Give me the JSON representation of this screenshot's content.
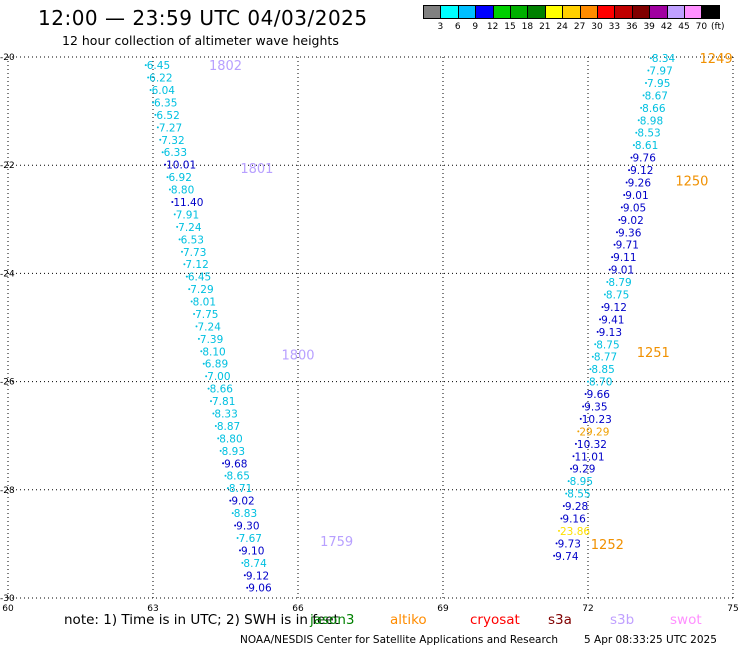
{
  "title": "12:00 — 23:59 UTC 04/03/2025",
  "subtitle": "12 hour collection of altimeter wave heights",
  "legend": {
    "colors": [
      "#808080",
      "#00ffff",
      "#00bfff",
      "#0000ff",
      "#00d000",
      "#00b000",
      "#008000",
      "#ffff00",
      "#ffd000",
      "#ff8c00",
      "#ff0000",
      "#c00000",
      "#800000",
      "#a000a0",
      "#c0a0ff",
      "#ff90ff",
      "#000000"
    ],
    "ticks": [
      "3",
      "6",
      "9",
      "12",
      "15",
      "18",
      "21",
      "24",
      "27",
      "30",
      "33",
      "36",
      "39",
      "42",
      "45",
      "70"
    ],
    "unit": "(ft)"
  },
  "note": {
    "text": "note: 1) Time is in UTC; 2) SWH is in feet",
    "satellites": [
      {
        "name": "jason3",
        "color": "#008000"
      },
      {
        "name": "altiko",
        "color": "#ff8c00"
      },
      {
        "name": "cryosat",
        "color": "#ff0000"
      },
      {
        "name": "s3a",
        "color": "#800000"
      },
      {
        "name": "s3b",
        "color": "#c0a0ff"
      },
      {
        "name": "swot",
        "color": "#ff90ff"
      }
    ]
  },
  "footer": {
    "left": "NOAA/NESDIS Center for Satellite Applications and Research",
    "right": "5 Apr 08:33:25 UTC 2025"
  },
  "chart_data": {
    "type": "scatter",
    "xlim": [
      60,
      75
    ],
    "ylim": [
      -30,
      -20
    ],
    "x_ticks": [
      "60",
      "63",
      "66",
      "69",
      "72",
      "75"
    ],
    "y_ticks": [
      "-20",
      "-22",
      "-24",
      "-26",
      "-28",
      "-30"
    ],
    "grid": true,
    "colors": {
      "cyan": "#00c0e0",
      "blue": "#0000c8",
      "orange": "#f0a000",
      "yellow": "#ffe000",
      "lav": "#b8a0ff",
      "time_orange": "#f09000"
    },
    "tracks": [
      {
        "points": [
          {
            "x": 62.85,
            "y": -20.15,
            "v": "6.45",
            "c": "cyan"
          },
          {
            "x": 62.9,
            "y": -20.38,
            "v": "6.22",
            "c": "cyan"
          },
          {
            "x": 62.95,
            "y": -20.61,
            "v": "6.04",
            "c": "cyan"
          },
          {
            "x": 63.0,
            "y": -20.84,
            "v": "6.35",
            "c": "cyan"
          },
          {
            "x": 63.05,
            "y": -21.07,
            "v": "6.52",
            "c": "cyan"
          },
          {
            "x": 63.1,
            "y": -21.3,
            "v": "7.27",
            "c": "cyan"
          },
          {
            "x": 63.15,
            "y": -21.53,
            "v": "7.32",
            "c": "cyan"
          },
          {
            "x": 63.2,
            "y": -21.76,
            "v": "6.33",
            "c": "cyan"
          },
          {
            "x": 63.25,
            "y": -21.99,
            "v": "10.01",
            "c": "blue"
          },
          {
            "x": 63.3,
            "y": -22.22,
            "v": "6.92",
            "c": "cyan"
          },
          {
            "x": 63.35,
            "y": -22.45,
            "v": "8.80",
            "c": "cyan"
          },
          {
            "x": 63.4,
            "y": -22.68,
            "v": "11.40",
            "c": "blue"
          },
          {
            "x": 63.45,
            "y": -22.91,
            "v": "7.91",
            "c": "cyan"
          },
          {
            "x": 63.5,
            "y": -23.14,
            "v": "7.24",
            "c": "cyan"
          },
          {
            "x": 63.55,
            "y": -23.37,
            "v": "6.53",
            "c": "cyan"
          },
          {
            "x": 63.6,
            "y": -23.6,
            "v": "7.73",
            "c": "cyan"
          },
          {
            "x": 63.65,
            "y": -23.83,
            "v": "7.12",
            "c": "cyan"
          },
          {
            "x": 63.7,
            "y": -24.06,
            "v": "6.45",
            "c": "cyan"
          },
          {
            "x": 63.75,
            "y": -24.29,
            "v": "7.29",
            "c": "cyan"
          },
          {
            "x": 63.8,
            "y": -24.52,
            "v": "8.01",
            "c": "cyan"
          },
          {
            "x": 63.85,
            "y": -24.75,
            "v": "7.75",
            "c": "cyan"
          },
          {
            "x": 63.9,
            "y": -24.98,
            "v": "7.24",
            "c": "cyan"
          },
          {
            "x": 63.95,
            "y": -25.21,
            "v": "7.39",
            "c": "cyan"
          },
          {
            "x": 64.0,
            "y": -25.44,
            "v": "8.10",
            "c": "cyan"
          },
          {
            "x": 64.05,
            "y": -25.67,
            "v": "6.89",
            "c": "cyan"
          },
          {
            "x": 64.1,
            "y": -25.9,
            "v": "7.00",
            "c": "cyan"
          },
          {
            "x": 64.15,
            "y": -26.13,
            "v": "8.66",
            "c": "cyan"
          },
          {
            "x": 64.2,
            "y": -26.36,
            "v": "7.81",
            "c": "cyan"
          },
          {
            "x": 64.25,
            "y": -26.59,
            "v": "8.33",
            "c": "cyan"
          },
          {
            "x": 64.3,
            "y": -26.82,
            "v": "8.87",
            "c": "cyan"
          },
          {
            "x": 64.35,
            "y": -27.05,
            "v": "8.80",
            "c": "cyan"
          },
          {
            "x": 64.4,
            "y": -27.28,
            "v": "8.93",
            "c": "cyan"
          },
          {
            "x": 64.45,
            "y": -27.51,
            "v": "9.68",
            "c": "blue"
          },
          {
            "x": 64.5,
            "y": -27.74,
            "v": "8.65",
            "c": "cyan"
          },
          {
            "x": 64.55,
            "y": -27.97,
            "v": "8.71",
            "c": "cyan"
          },
          {
            "x": 64.6,
            "y": -28.2,
            "v": "9.02",
            "c": "blue"
          },
          {
            "x": 64.65,
            "y": -28.43,
            "v": "8.83",
            "c": "cyan"
          },
          {
            "x": 64.7,
            "y": -28.66,
            "v": "9.30",
            "c": "blue"
          },
          {
            "x": 64.75,
            "y": -28.89,
            "v": "7.67",
            "c": "cyan"
          },
          {
            "x": 64.8,
            "y": -29.12,
            "v": "9.10",
            "c": "blue"
          },
          {
            "x": 64.85,
            "y": -29.35,
            "v": "8.74",
            "c": "cyan"
          },
          {
            "x": 64.9,
            "y": -29.58,
            "v": "9.12",
            "c": "blue"
          },
          {
            "x": 64.95,
            "y": -29.81,
            "v": "9.06",
            "c": "blue"
          }
        ],
        "time_labels": [
          {
            "x": 64.5,
            "y": -20.15,
            "t": "1802"
          },
          {
            "x": 65.15,
            "y": -22.05,
            "t": "1801"
          },
          {
            "x": 66.0,
            "y": -25.5,
            "t": "1800"
          },
          {
            "x": 66.8,
            "y": -28.95,
            "t": "1759"
          }
        ],
        "label_color": "lav"
      },
      {
        "points": [
          {
            "x": 73.3,
            "y": -20.02,
            "v": "8.34",
            "c": "cyan"
          },
          {
            "x": 73.25,
            "y": -20.25,
            "v": "7.97",
            "c": "cyan"
          },
          {
            "x": 73.2,
            "y": -20.48,
            "v": "7.95",
            "c": "cyan"
          },
          {
            "x": 73.15,
            "y": -20.71,
            "v": "8.67",
            "c": "cyan"
          },
          {
            "x": 73.1,
            "y": -20.94,
            "v": "8.66",
            "c": "cyan"
          },
          {
            "x": 73.05,
            "y": -21.17,
            "v": "8.98",
            "c": "cyan"
          },
          {
            "x": 73.0,
            "y": -21.4,
            "v": "8.53",
            "c": "cyan"
          },
          {
            "x": 72.95,
            "y": -21.63,
            "v": "8.61",
            "c": "cyan"
          },
          {
            "x": 72.9,
            "y": -21.86,
            "v": "9.76",
            "c": "blue"
          },
          {
            "x": 72.85,
            "y": -22.09,
            "v": "9.12",
            "c": "blue"
          },
          {
            "x": 72.8,
            "y": -22.32,
            "v": "9.26",
            "c": "blue"
          },
          {
            "x": 72.75,
            "y": -22.55,
            "v": "9.01",
            "c": "blue"
          },
          {
            "x": 72.7,
            "y": -22.78,
            "v": "9.05",
            "c": "blue"
          },
          {
            "x": 72.65,
            "y": -23.01,
            "v": "9.02",
            "c": "blue"
          },
          {
            "x": 72.6,
            "y": -23.24,
            "v": "9.36",
            "c": "blue"
          },
          {
            "x": 72.55,
            "y": -23.47,
            "v": "9.71",
            "c": "blue"
          },
          {
            "x": 72.5,
            "y": -23.7,
            "v": "9.11",
            "c": "blue"
          },
          {
            "x": 72.45,
            "y": -23.93,
            "v": "9.01",
            "c": "blue"
          },
          {
            "x": 72.4,
            "y": -24.16,
            "v": "8.79",
            "c": "cyan"
          },
          {
            "x": 72.35,
            "y": -24.39,
            "v": "8.75",
            "c": "cyan"
          },
          {
            "x": 72.3,
            "y": -24.62,
            "v": "9.12",
            "c": "blue"
          },
          {
            "x": 72.25,
            "y": -24.85,
            "v": "9.41",
            "c": "blue"
          },
          {
            "x": 72.2,
            "y": -25.08,
            "v": "9.13",
            "c": "blue"
          },
          {
            "x": 72.15,
            "y": -25.31,
            "v": "8.75",
            "c": "cyan"
          },
          {
            "x": 72.1,
            "y": -25.54,
            "v": "8.77",
            "c": "cyan"
          },
          {
            "x": 72.05,
            "y": -25.77,
            "v": "8.85",
            "c": "cyan"
          },
          {
            "x": 72.0,
            "y": -26.0,
            "v": "8.70",
            "c": "cyan"
          },
          {
            "x": 71.95,
            "y": -26.23,
            "v": "9.66",
            "c": "blue"
          },
          {
            "x": 71.9,
            "y": -26.46,
            "v": "9.35",
            "c": "blue"
          },
          {
            "x": 71.85,
            "y": -26.69,
            "v": "10.23",
            "c": "blue"
          },
          {
            "x": 71.8,
            "y": -26.92,
            "v": "29.29",
            "c": "orange"
          },
          {
            "x": 71.75,
            "y": -27.15,
            "v": "10.32",
            "c": "blue"
          },
          {
            "x": 71.7,
            "y": -27.38,
            "v": "11.01",
            "c": "blue"
          },
          {
            "x": 71.65,
            "y": -27.61,
            "v": "9.29",
            "c": "blue"
          },
          {
            "x": 71.6,
            "y": -27.84,
            "v": "8.95",
            "c": "cyan"
          },
          {
            "x": 71.55,
            "y": -28.07,
            "v": "8.55",
            "c": "cyan"
          },
          {
            "x": 71.5,
            "y": -28.3,
            "v": "9.28",
            "c": "blue"
          },
          {
            "x": 71.45,
            "y": -28.53,
            "v": "9.16",
            "c": "blue"
          },
          {
            "x": 71.4,
            "y": -28.76,
            "v": "23.86",
            "c": "yellow"
          },
          {
            "x": 71.35,
            "y": -28.99,
            "v": "9.73",
            "c": "blue"
          },
          {
            "x": 71.3,
            "y": -29.22,
            "v": "9.74",
            "c": "blue"
          }
        ],
        "time_labels": [
          {
            "x": 74.65,
            "y": -20.02,
            "t": "1249"
          },
          {
            "x": 74.15,
            "y": -22.28,
            "t": "1250"
          },
          {
            "x": 73.35,
            "y": -25.45,
            "t": "1251"
          },
          {
            "x": 72.4,
            "y": -29.0,
            "t": "1252"
          }
        ],
        "label_color": "time_orange"
      }
    ]
  }
}
